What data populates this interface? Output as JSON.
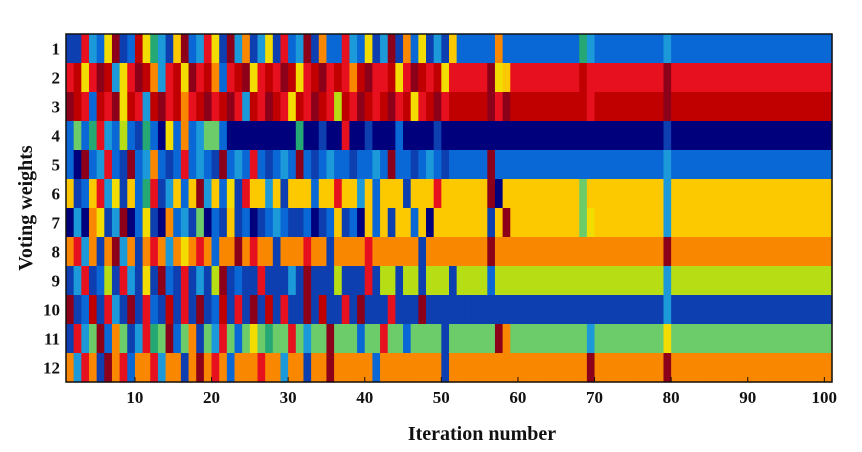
{
  "chart_data": {
    "type": "heatmap",
    "title": "",
    "xlabel": "Iteration number",
    "ylabel": "Voting weights",
    "xlim": [
      1,
      100
    ],
    "xticks": [
      10,
      20,
      30,
      40,
      50,
      60,
      70,
      80,
      90,
      100
    ],
    "yticks": [
      1,
      2,
      3,
      4,
      5,
      6,
      7,
      8,
      9,
      10,
      11,
      12
    ],
    "colormap": "jet",
    "palette": {
      "0": "#00007c",
      "1": "#0d3fb0",
      "2": "#0a68d6",
      "3": "#1c99d8",
      "4": "#25a874",
      "5": "#6dcc6a",
      "6": "#b7de14",
      "7": "#f3dd00",
      "8": "#fcc800",
      "9": "#fa8700",
      "10": "#e6101e",
      "11": "#c00000",
      "12": "#8c0019"
    },
    "final_color_index": [
      2,
      10,
      11,
      0,
      2,
      8,
      8,
      9,
      6,
      1,
      5,
      9
    ],
    "rows": [
      {
        "weight": 1,
        "early": [
          1,
          1,
          10,
          3,
          2,
          7,
          12,
          1,
          2,
          11,
          7,
          4,
          3,
          1,
          8,
          12,
          2,
          3,
          10,
          7,
          1,
          12,
          3,
          9,
          1,
          3,
          7,
          1,
          10,
          2,
          3,
          12,
          1,
          9,
          2,
          2,
          10,
          3,
          2,
          7,
          1,
          3,
          12,
          1,
          9,
          2,
          7,
          1,
          3,
          1,
          8
        ],
        "transitions": [
          [
            58,
            1
          ]
        ]
      },
      {
        "weight": 2,
        "early": [
          10,
          11,
          7,
          10,
          12,
          11,
          3,
          7,
          10,
          12,
          11,
          9,
          3,
          10,
          11,
          7,
          12,
          10,
          11,
          9,
          2,
          10,
          11,
          12,
          7,
          10,
          11,
          10,
          12,
          11,
          7,
          10,
          11,
          12,
          10,
          11,
          10,
          9,
          11,
          12,
          10,
          10,
          11,
          7,
          10,
          12,
          11,
          10,
          11,
          7,
          10
        ],
        "transitions": []
      },
      {
        "weight": 3,
        "early": [
          12,
          11,
          10,
          2,
          11,
          10,
          12,
          7,
          11,
          10,
          3,
          11,
          12,
          10,
          11,
          9,
          10,
          11,
          12,
          10,
          11,
          12,
          10,
          3,
          11,
          10,
          12,
          11,
          10,
          7,
          11,
          10,
          12,
          11,
          10,
          6,
          11,
          10,
          12,
          11,
          10,
          11,
          12,
          10,
          11,
          7,
          10,
          11,
          12,
          10,
          11
        ],
        "transitions": []
      },
      {
        "weight": 4,
        "early": [
          2,
          5,
          2,
          4,
          10,
          3,
          2,
          6,
          2,
          1,
          4,
          2,
          0,
          7,
          2,
          9,
          2,
          3,
          5,
          5,
          2,
          0,
          0,
          0,
          0,
          0,
          0,
          0,
          0,
          0,
          4,
          0,
          0,
          1,
          0,
          0,
          10,
          0,
          0,
          1,
          0,
          0,
          0,
          2,
          0,
          0,
          0,
          0,
          1,
          0,
          0
        ],
        "transitions": []
      },
      {
        "weight": 5,
        "early": [
          2,
          0,
          12,
          2,
          3,
          10,
          2,
          1,
          12,
          2,
          3,
          9,
          2,
          1,
          2,
          10,
          2,
          3,
          2,
          1,
          12,
          2,
          3,
          2,
          10,
          2,
          1,
          2,
          3,
          2,
          12,
          2,
          1,
          2,
          3,
          2,
          2,
          1,
          2,
          2,
          3,
          2,
          12,
          2,
          2,
          1,
          2,
          3,
          2,
          1,
          2
        ],
        "transitions": []
      },
      {
        "weight": 6,
        "early": [
          8,
          1,
          2,
          8,
          10,
          3,
          7,
          1,
          8,
          2,
          4,
          10,
          1,
          3,
          8,
          2,
          8,
          12,
          3,
          8,
          2,
          7,
          1,
          10,
          8,
          8,
          3,
          8,
          1,
          8,
          8,
          8,
          2,
          8,
          8,
          10,
          8,
          8,
          3,
          8,
          2,
          8,
          8,
          8,
          1,
          8,
          8,
          8,
          10,
          8,
          8
        ],
        "transitions": []
      },
      {
        "weight": 7,
        "early": [
          0,
          3,
          0,
          9,
          7,
          1,
          3,
          12,
          0,
          2,
          7,
          1,
          0,
          9,
          2,
          3,
          1,
          5,
          0,
          2,
          1,
          8,
          1,
          2,
          0,
          1,
          2,
          3,
          2,
          1,
          1,
          2,
          0,
          1,
          2,
          8,
          1,
          2,
          0,
          8,
          2,
          8,
          1,
          8,
          8,
          2,
          8,
          0,
          8,
          8,
          8
        ],
        "transitions": []
      },
      {
        "weight": 8,
        "early": [
          9,
          10,
          3,
          9,
          1,
          9,
          12,
          3,
          9,
          1,
          9,
          10,
          9,
          3,
          9,
          7,
          9,
          10,
          9,
          2,
          9,
          9,
          12,
          9,
          10,
          9,
          9,
          1,
          9,
          9,
          9,
          10,
          9,
          9,
          1,
          9,
          9,
          9,
          9,
          10,
          9,
          9,
          9,
          9,
          9,
          9,
          1,
          9,
          9,
          9,
          9
        ],
        "transitions": []
      },
      {
        "weight": 9,
        "early": [
          1,
          3,
          10,
          1,
          2,
          6,
          1,
          10,
          3,
          1,
          7,
          1,
          12,
          2,
          1,
          10,
          1,
          3,
          1,
          6,
          12,
          1,
          2,
          1,
          1,
          10,
          1,
          1,
          1,
          3,
          1,
          12,
          1,
          1,
          1,
          6,
          1,
          1,
          1,
          10,
          1,
          6,
          6,
          1,
          6,
          6,
          1,
          6,
          6,
          6,
          1
        ],
        "transitions": []
      },
      {
        "weight": 10,
        "early": [
          12,
          1,
          2,
          11,
          1,
          10,
          3,
          1,
          12,
          1,
          10,
          2,
          1,
          11,
          1,
          10,
          1,
          12,
          1,
          2,
          11,
          1,
          10,
          1,
          12,
          1,
          11,
          1,
          10,
          1,
          1,
          12,
          1,
          11,
          1,
          1,
          10,
          1,
          12,
          1,
          1,
          1,
          10,
          1,
          1,
          1,
          12,
          1,
          1,
          1,
          1
        ],
        "transitions": []
      },
      {
        "weight": 11,
        "early": [
          1,
          10,
          3,
          5,
          12,
          2,
          9,
          5,
          1,
          3,
          10,
          4,
          5,
          12,
          2,
          5,
          9,
          1,
          5,
          3,
          10,
          5,
          2,
          5,
          7,
          5,
          4,
          5,
          5,
          10,
          5,
          3,
          5,
          5,
          12,
          5,
          5,
          5,
          2,
          5,
          5,
          10,
          5,
          5,
          2,
          5,
          5,
          5,
          5,
          1,
          5
        ],
        "transitions": []
      },
      {
        "weight": 12,
        "early": [
          9,
          3,
          10,
          9,
          1,
          12,
          9,
          10,
          2,
          9,
          9,
          10,
          3,
          9,
          9,
          1,
          9,
          12,
          9,
          10,
          9,
          2,
          9,
          9,
          9,
          10,
          9,
          9,
          3,
          9,
          9,
          1,
          9,
          9,
          12,
          9,
          9,
          9,
          9,
          9,
          2,
          9,
          9,
          9,
          9,
          9,
          9,
          9,
          9,
          1,
          9
        ],
        "transitions": []
      }
    ],
    "vertical_stripes": [
      {
        "iteration": 56,
        "color_index": [
          2,
          12,
          12,
          0,
          12,
          12,
          1,
          12,
          2,
          1,
          5,
          9
        ]
      },
      {
        "iteration": 57,
        "color_index": [
          9,
          7,
          10,
          0,
          2,
          0,
          8,
          9,
          6,
          1,
          12,
          9
        ]
      },
      {
        "iteration": 58,
        "color_index": [
          2,
          8,
          12,
          0,
          2,
          8,
          12,
          9,
          6,
          1,
          9,
          9
        ]
      },
      {
        "iteration": 68,
        "color_index": [
          4,
          11,
          11,
          0,
          2,
          5,
          5,
          9,
          6,
          1,
          5,
          9
        ]
      },
      {
        "iteration": 69,
        "color_index": [
          3,
          10,
          10,
          0,
          2,
          8,
          7,
          9,
          6,
          1,
          3,
          12
        ]
      },
      {
        "iteration": 79,
        "color_index": [
          3,
          12,
          12,
          1,
          3,
          3,
          3,
          12,
          3,
          3,
          7,
          12
        ]
      }
    ]
  }
}
